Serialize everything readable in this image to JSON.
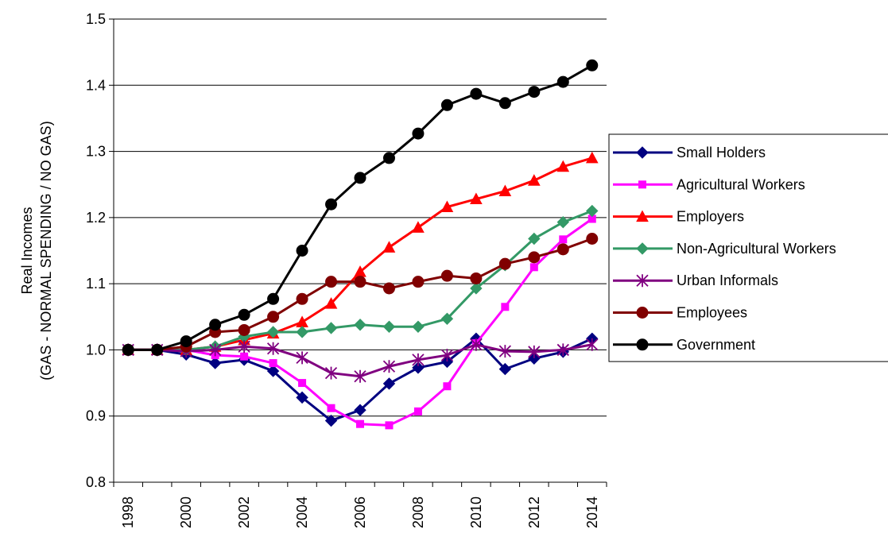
{
  "chart_data": {
    "type": "line",
    "ylabel": [
      "Real Incomes",
      "(GAS - NORMAL SPENDING / NO GAS)"
    ],
    "categories": [
      "1998",
      null,
      "2000",
      null,
      "2002",
      null,
      "2004",
      null,
      "2006",
      null,
      "2008",
      null,
      "2010",
      null,
      "2012",
      null,
      "2014"
    ],
    "ylim": [
      0.8,
      1.5
    ],
    "yticks": [
      0.8,
      0.9,
      {
        "value": 1,
        "label": "1.0"
      },
      1.1,
      1.2,
      1.3,
      1.4,
      1.5
    ],
    "grid": true,
    "legend": "right",
    "series": [
      {
        "name": "Small Holders",
        "color": "#000080",
        "marker": "diamond",
        "values": [
          1.0,
          1.0,
          0.993,
          0.98,
          0.985,
          0.968,
          0.928,
          0.893,
          0.909,
          0.949,
          0.973,
          0.982,
          1.017,
          0.971,
          0.987,
          0.997,
          1.017
        ]
      },
      {
        "name": "Agricultural Workers",
        "color": "#ff00ff",
        "marker": "square",
        "values": [
          1.0,
          1.0,
          1.0,
          0.992,
          0.99,
          0.98,
          0.95,
          0.912,
          0.888,
          0.886,
          0.907,
          0.945,
          1.01,
          1.065,
          1.125,
          1.167,
          1.198
        ]
      },
      {
        "name": "Employers",
        "color": "#ff0000",
        "marker": "triangle",
        "values": [
          1.0,
          1.0,
          1.0,
          1.005,
          1.015,
          1.025,
          1.042,
          1.07,
          1.118,
          1.155,
          1.185,
          1.216,
          1.228,
          1.24,
          1.256,
          1.277,
          1.29
        ]
      },
      {
        "name": "Non-Agricultural Workers",
        "color": "#339966",
        "marker": "diamond",
        "values": [
          1.0,
          1.0,
          1.0,
          1.005,
          1.02,
          1.027,
          1.027,
          1.033,
          1.038,
          1.035,
          1.035,
          1.047,
          1.093,
          1.128,
          1.168,
          1.193,
          1.21
        ]
      },
      {
        "name": "Urban Informals",
        "color": "#800080",
        "marker": "star",
        "values": [
          1.0,
          1.0,
          0.998,
          1.0,
          1.005,
          1.002,
          0.988,
          0.965,
          0.96,
          0.975,
          0.985,
          0.992,
          1.008,
          0.998,
          0.997,
          1.0,
          1.008
        ]
      },
      {
        "name": "Employees",
        "color": "#800000",
        "marker": "circle",
        "values": [
          1.0,
          1.0,
          1.005,
          1.027,
          1.03,
          1.05,
          1.077,
          1.103,
          1.103,
          1.093,
          1.103,
          1.112,
          1.108,
          1.13,
          1.14,
          1.152,
          1.168
        ]
      },
      {
        "name": "Government",
        "color": "#000000",
        "marker": "circle",
        "values": [
          1.0,
          1.0,
          1.013,
          1.038,
          1.053,
          1.077,
          1.15,
          1.22,
          1.26,
          1.29,
          1.327,
          1.37,
          1.387,
          1.373,
          1.39,
          1.405,
          1.43
        ]
      }
    ]
  }
}
